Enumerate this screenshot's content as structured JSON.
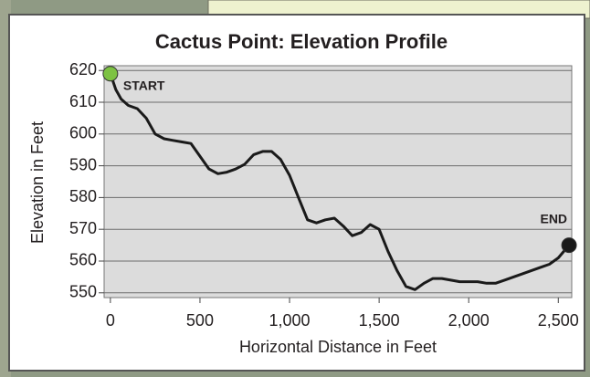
{
  "chart_data": {
    "type": "line",
    "title": "Cactus Point: Elevation Profile",
    "x_label": "Horizontal Distance in Feet",
    "y_label": "Elevation in Feet",
    "x": [
      0,
      30,
      60,
      100,
      150,
      200,
      250,
      300,
      350,
      400,
      450,
      500,
      550,
      600,
      650,
      700,
      750,
      800,
      850,
      900,
      950,
      1000,
      1050,
      1100,
      1150,
      1200,
      1250,
      1300,
      1350,
      1400,
      1450,
      1500,
      1550,
      1600,
      1650,
      1700,
      1750,
      1800,
      1850,
      1900,
      1950,
      2000,
      2050,
      2100,
      2150,
      2200,
      2250,
      2300,
      2350,
      2400,
      2450,
      2500,
      2530,
      2560
    ],
    "values": [
      619,
      614,
      611,
      609,
      608,
      605,
      600,
      598.5,
      598,
      597.5,
      597,
      593,
      589,
      587.5,
      588,
      589,
      590.5,
      593.5,
      594.5,
      594.5,
      592,
      587,
      580,
      573,
      572,
      573,
      573.5,
      571,
      568,
      569,
      571.5,
      570,
      563,
      557,
      552,
      551,
      553,
      554.5,
      554.5,
      554,
      553.5,
      553.5,
      553.5,
      553,
      553,
      554,
      555,
      556,
      557,
      558,
      559,
      561,
      563,
      565
    ],
    "color": "#1a1a1a",
    "annotations": [
      {
        "text": "START",
        "x": 0,
        "y": 619,
        "color": "#7dc243"
      },
      {
        "text": "END",
        "x": 2560,
        "y": 565,
        "color": "#1a1a1a"
      }
    ],
    "xlim": [
      -35,
      2575
    ],
    "ylim": [
      548.5,
      621.5
    ],
    "xticks": [
      0,
      500,
      {
        "value": 1000,
        "label": "1,000"
      },
      {
        "value": 1500,
        "label": "1,500"
      },
      {
        "value": 2000,
        "label": "2,000"
      },
      {
        "value": 2500,
        "label": "2,500"
      }
    ],
    "yticks": [
      550,
      560,
      570,
      580,
      590,
      600,
      610,
      620
    ],
    "grid": true
  }
}
